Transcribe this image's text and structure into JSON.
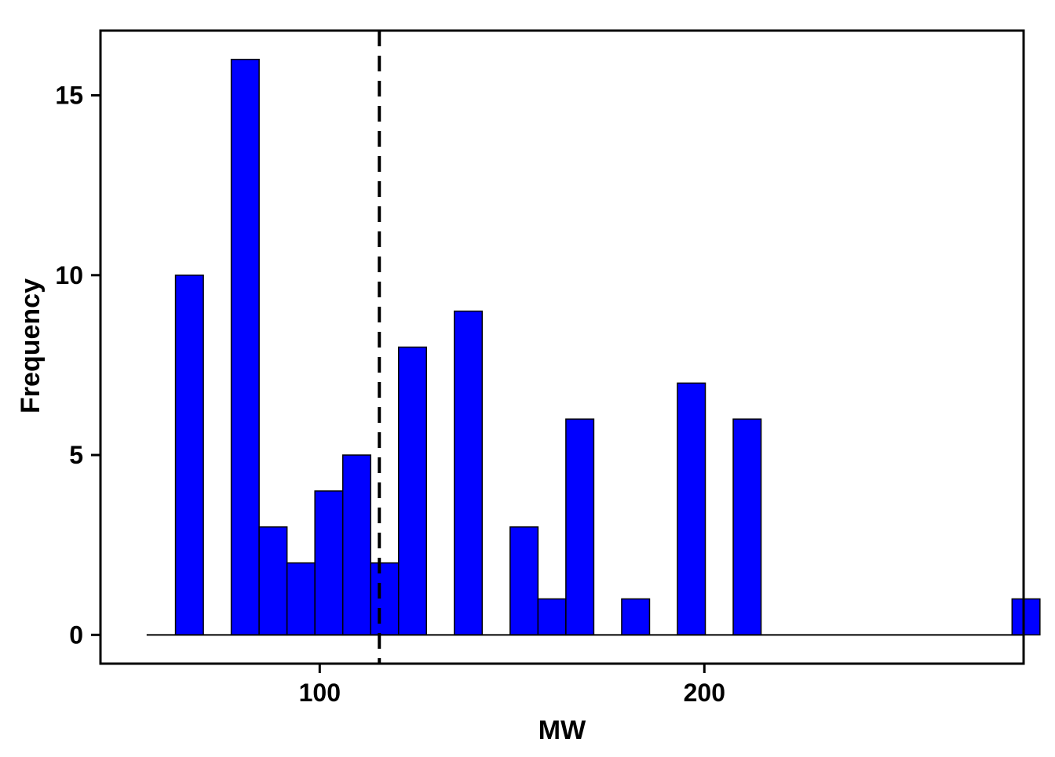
{
  "chart_data": {
    "type": "bar",
    "subtype": "histogram",
    "title": "",
    "xlabel": "MW",
    "ylabel": "Frequency",
    "xlim": [
      43,
      283
    ],
    "ylim": [
      -0.8,
      16.8
    ],
    "x_ticks": [
      100,
      200
    ],
    "y_ticks": [
      0,
      5,
      10,
      15
    ],
    "bin_width": 7.25,
    "baseline_range": [
      55,
      283
    ],
    "bars": [
      {
        "start": 62.5,
        "value": 10
      },
      {
        "start": 77.0,
        "value": 16
      },
      {
        "start": 84.25,
        "value": 3
      },
      {
        "start": 91.5,
        "value": 2
      },
      {
        "start": 98.75,
        "value": 4
      },
      {
        "start": 106.0,
        "value": 5
      },
      {
        "start": 113.25,
        "value": 2
      },
      {
        "start": 120.5,
        "value": 8
      },
      {
        "start": 135.0,
        "value": 9
      },
      {
        "start": 149.5,
        "value": 3
      },
      {
        "start": 156.75,
        "value": 1
      },
      {
        "start": 164.0,
        "value": 6
      },
      {
        "start": 178.5,
        "value": 1
      },
      {
        "start": 193.0,
        "value": 7
      },
      {
        "start": 207.5,
        "value": 6
      },
      {
        "start": 280.0,
        "value": 1
      }
    ],
    "reference_line": {
      "x": 115.5,
      "style": "dashed"
    },
    "grid": false,
    "legend": "none",
    "colors": {
      "bar_fill": "#0000FF",
      "bar_stroke": "#000000",
      "reference_line": "#000000"
    }
  }
}
